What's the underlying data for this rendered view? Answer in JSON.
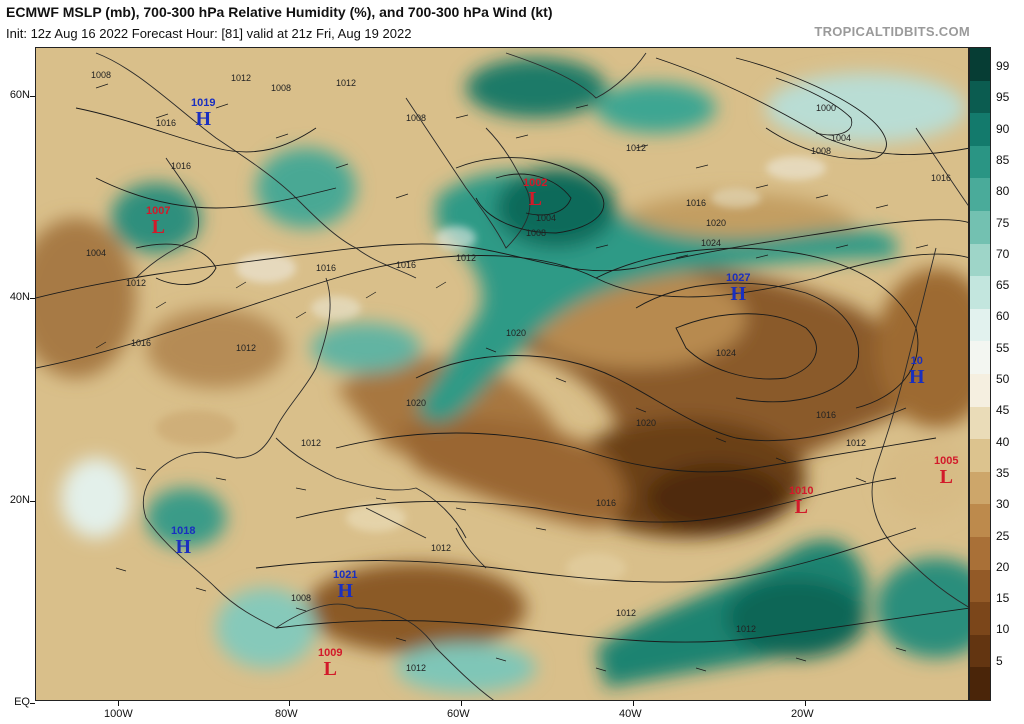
{
  "header": {
    "title": "ECMWF MSLP (mb), 700-300 hPa Relative Humidity (%), and 700-300 hPa Wind (kt)",
    "subtitle": "Init: 12z Aug 16 2022   Forecast Hour: [81]   valid at 21z Fri, Aug 19 2022",
    "brand": "TROPICALTIDBITS.COM"
  },
  "axes": {
    "lat_labels": [
      "60N",
      "40N",
      "20N",
      "EQ"
    ],
    "lon_labels": [
      "100W",
      "80W",
      "60W",
      "40W",
      "20W"
    ]
  },
  "colorbar": {
    "labels": [
      "99",
      "95",
      "90",
      "85",
      "80",
      "75",
      "70",
      "65",
      "60",
      "55",
      "50",
      "45",
      "40",
      "35",
      "30",
      "25",
      "20",
      "15",
      "10",
      "5"
    ],
    "colors": [
      "#063d34",
      "#0b5c50",
      "#137a6c",
      "#2a9584",
      "#4aab9a",
      "#73c1b1",
      "#9ed5c8",
      "#c3e6de",
      "#e2f2ee",
      "#f3f6f1",
      "#f5efe0",
      "#eadcb8",
      "#dcc38e",
      "#cda66a",
      "#bd8a4c",
      "#a97037",
      "#935a27",
      "#7b461a",
      "#633511",
      "#4a2509"
    ]
  },
  "systems": [
    {
      "type": "H",
      "value": "1019"
    },
    {
      "type": "L",
      "value": "1007"
    },
    {
      "type": "L",
      "value": "1002"
    },
    {
      "type": "H",
      "value": "1027"
    },
    {
      "type": "H",
      "value": "10"
    },
    {
      "type": "L",
      "value": "1005"
    },
    {
      "type": "L",
      "value": "1010"
    },
    {
      "type": "H",
      "value": "1018"
    },
    {
      "type": "H",
      "value": "1021"
    },
    {
      "type": "L",
      "value": "1009"
    }
  ],
  "isobar_labels": [
    "1008",
    "1012",
    "1016",
    "1016",
    "1012",
    "1016",
    "1008",
    "1012",
    "1016",
    "1012",
    "1004",
    "1008",
    "1012",
    "1016",
    "1020",
    "1024",
    "1020",
    "1016",
    "1020",
    "1024",
    "1020",
    "1016",
    "1012",
    "1016",
    "1012",
    "1012",
    "1012",
    "1012",
    "1012",
    "1008",
    "1000",
    "1004",
    "1008",
    "1004",
    "1008",
    "1012",
    "1016"
  ]
}
